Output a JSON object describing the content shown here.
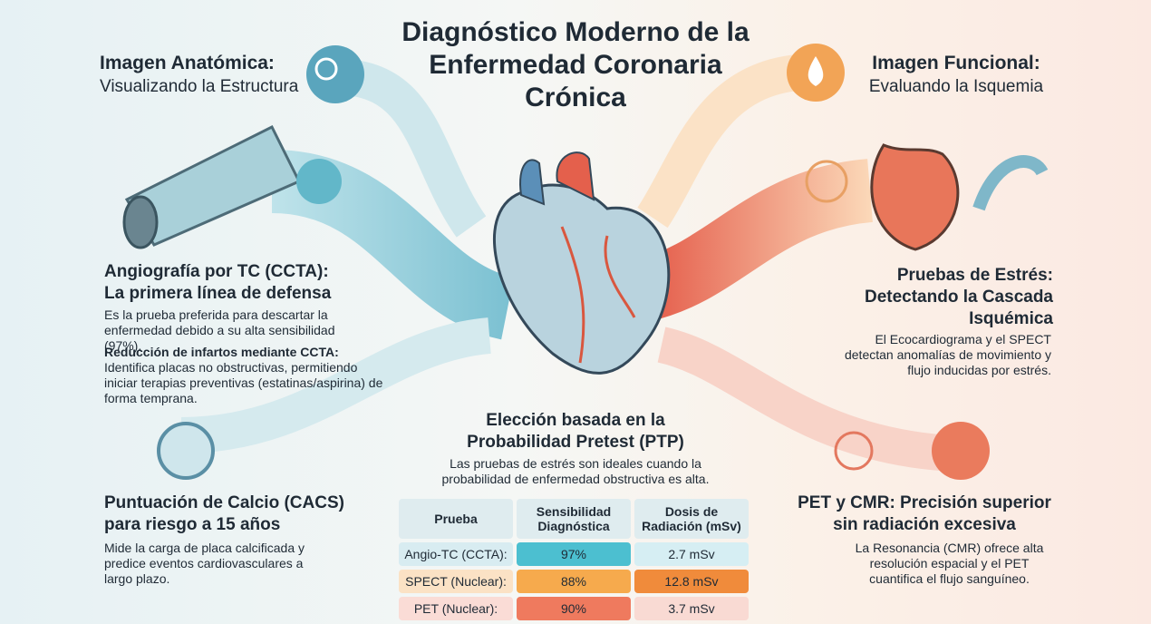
{
  "title_lines": [
    "Diagnóstico Moderno de la",
    "Enfermedad Coronaria",
    "Crónica"
  ],
  "anatomic": {
    "title": "Imagen Anatómica:",
    "subtitle": "Visualizando la Estructura"
  },
  "functional": {
    "title": "Imagen Funcional:",
    "subtitle": "Evaluando la Isquemia"
  },
  "ccta": {
    "heading": "Angiografía por TC (CCTA): La primera línea de defensa",
    "body": "Es la prueba preferida para descartar la enfermedad debido a su alta sensibilidad (97%).",
    "subheading": "Reducción de infartos mediante CCTA:",
    "body2": "Identifica placas no obstructivas, permitiendo iniciar terapias preventivas (estatinas/aspirina) de forma temprana."
  },
  "cacs": {
    "heading": "Puntuación de Calcio (CACS) para riesgo a 15 años",
    "body": "Mide la carga de placa calcificada y predice eventos cardiovasculares a largo plazo."
  },
  "stress": {
    "heading": "Pruebas de Estrés: Detectando la Cascada Isquémica",
    "body": "El Ecocardiograma y el SPECT detectan anomalías de movimiento y flujo inducidas por estrés."
  },
  "pet": {
    "heading": "PET y CMR: Precisión superior sin radiación excesiva",
    "body": "La Resonancia (CMR) ofrece alta resolución espacial y el PET cuantifica el flujo sanguíneo."
  },
  "ptp": {
    "heading": "Elección basada en la Probabilidad Pretest (PTP)",
    "body": "Las pruebas de estrés son ideales cuando la probabilidad de enfermedad obstructiva es alta."
  },
  "table": {
    "header": [
      "Prueba",
      "Sensibilidad Diagnóstica",
      "Dosis de Radiación (mSv)"
    ],
    "rows": [
      [
        "Angio-TC (CCTA):",
        "97%",
        "2.7 mSv"
      ],
      [
        "SPECT (Nuclear):",
        "88%",
        "12.8 mSv"
      ],
      [
        "PET (Nuclear):",
        "90%",
        "3.7 mSv"
      ]
    ]
  }
}
